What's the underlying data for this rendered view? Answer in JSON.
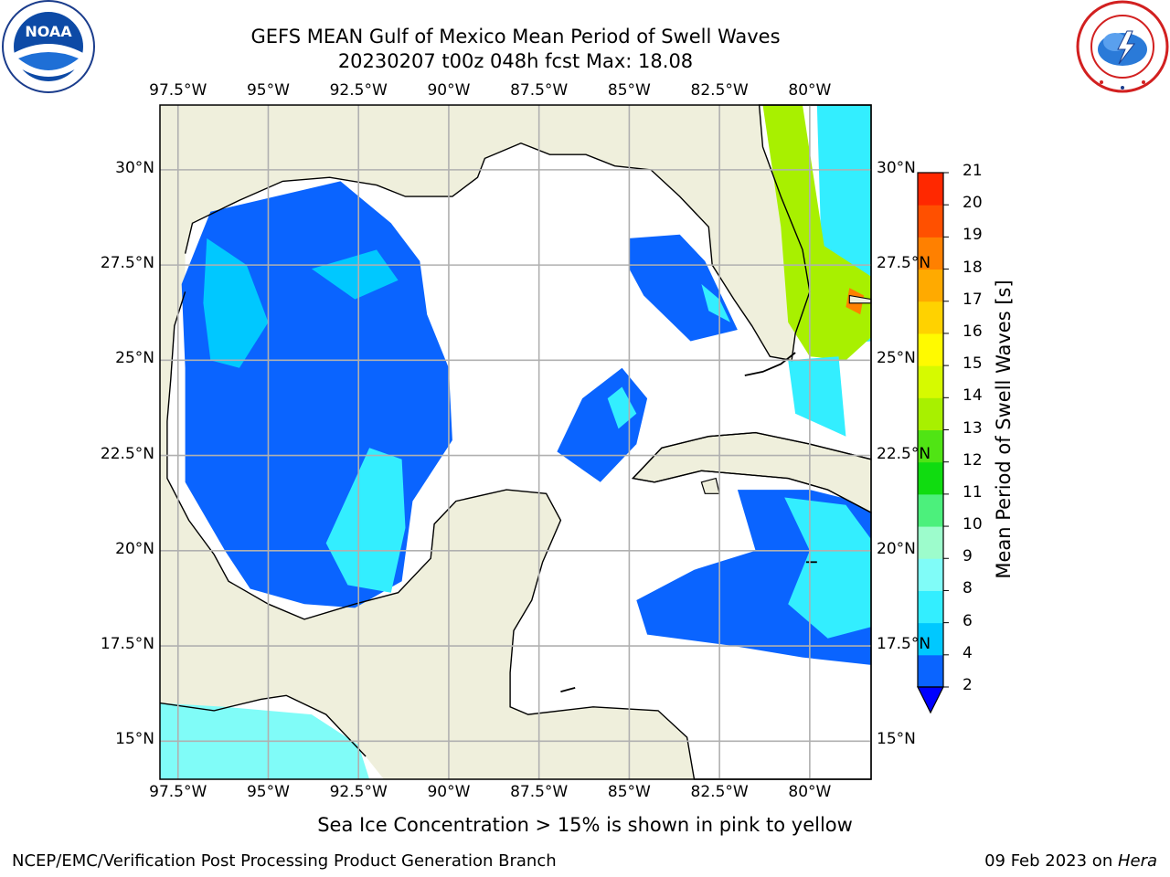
{
  "header": {
    "title_line1": "GEFS MEAN Gulf of Mexico Mean Period of Swell Waves",
    "title_line2": "20230207 t00z 048h fcst   Max: 18.08"
  },
  "logos": {
    "left_icon": "noaa-logo-icon",
    "left_text": "NOAA",
    "right_icon": "nws-logo-icon"
  },
  "subtitle": "Sea Ice Concentration > 15% is shown in pink to yellow",
  "footer": {
    "left": "NCEP/EMC/Verification Post Processing Product Generation Branch",
    "right_date": "09 Feb 2023 on ",
    "right_host": "Hera"
  },
  "colors": {
    "land": "#efefdc",
    "ocean_nodata": "#ffffff",
    "coast": "#000000",
    "grid": "#b0b0b0"
  },
  "chart_data": {
    "type": "heatmap",
    "title": "GEFS MEAN Gulf of Mexico Mean Period of Swell Waves",
    "max_value": 18.08,
    "x_ticks": [
      "97.5°W",
      "95°W",
      "92.5°W",
      "90°W",
      "87.5°W",
      "85°W",
      "82.5°W",
      "80°W"
    ],
    "x_tick_values": [
      -97.5,
      -95,
      -92.5,
      -90,
      -87.5,
      -85,
      -82.5,
      -80
    ],
    "y_ticks_left": [
      "30°N",
      "27.5°N",
      "25°N",
      "22.5°N",
      "20°N",
      "17.5°N",
      "15°N"
    ],
    "y_ticks_right": [
      "30°N",
      "27.5°N",
      "25°N",
      "22.5°N",
      "20°N",
      "17.5°N",
      "15°N"
    ],
    "y_tick_values": [
      30,
      27.5,
      25,
      22.5,
      20,
      17.5,
      15
    ],
    "xlim": [
      -98,
      -78.3
    ],
    "ylim": [
      14,
      31.7
    ],
    "grid": true,
    "colorbar": {
      "label": "Mean Period of Swell Waves [s]",
      "ticks": [
        "2",
        "4",
        "6",
        "8",
        "9",
        "10",
        "11",
        "12",
        "13",
        "14",
        "15",
        "16",
        "17",
        "18",
        "19",
        "20",
        "21"
      ],
      "colors": [
        "#0a64ff",
        "#00c8ff",
        "#33eeff",
        "#80fcf8",
        "#9dfccc",
        "#4cf07c",
        "#10dc10",
        "#50e414",
        "#a8f000",
        "#d6fa00",
        "#fffa00",
        "#ffd200",
        "#ffaa00",
        "#ff8000",
        "#ff5000",
        "#ff2800"
      ],
      "under_color": "#0000ff"
    },
    "regions": [
      {
        "name": "nw-gulf",
        "value": 3,
        "points": [
          [
            -96.6,
            28.9
          ],
          [
            -93.0,
            29.7
          ],
          [
            -91.6,
            28.6
          ],
          [
            -90.8,
            27.6
          ],
          [
            -90.6,
            26.2
          ],
          [
            -90.0,
            24.8
          ],
          [
            -89.9,
            22.9
          ],
          [
            -91.0,
            21.3
          ],
          [
            -91.3,
            19.2
          ],
          [
            -92.6,
            18.5
          ],
          [
            -94.0,
            18.6
          ],
          [
            -95.5,
            19.0
          ],
          [
            -96.2,
            20.0
          ],
          [
            -97.3,
            21.8
          ],
          [
            -97.3,
            24.8
          ],
          [
            -97.4,
            27.0
          ]
        ]
      },
      {
        "name": "nw-gulf-light",
        "value": 5,
        "points": [
          [
            -96.7,
            28.2
          ],
          [
            -95.6,
            27.5
          ],
          [
            -95.0,
            26.0
          ],
          [
            -95.8,
            24.8
          ],
          [
            -96.6,
            25.0
          ],
          [
            -96.8,
            26.5
          ]
        ]
      },
      {
        "name": "nw-gulf-light-2",
        "value": 5,
        "points": [
          [
            -93.8,
            27.4
          ],
          [
            -92.0,
            27.9
          ],
          [
            -91.4,
            27.1
          ],
          [
            -92.6,
            26.6
          ]
        ]
      },
      {
        "name": "campeche-light",
        "value": 6,
        "points": [
          [
            -93.4,
            20.2
          ],
          [
            -92.2,
            22.7
          ],
          [
            -91.3,
            22.4
          ],
          [
            -91.2,
            20.6
          ],
          [
            -91.6,
            18.9
          ],
          [
            -92.8,
            19.1
          ]
        ]
      },
      {
        "name": "east-gulf",
        "value": 3,
        "points": [
          [
            -85.0,
            28.2
          ],
          [
            -83.6,
            28.3
          ],
          [
            -82.9,
            27.6
          ],
          [
            -82.0,
            25.8
          ],
          [
            -83.3,
            25.5
          ],
          [
            -84.6,
            26.7
          ],
          [
            -85.0,
            27.4
          ]
        ]
      },
      {
        "name": "east-gulf-light",
        "value": 6,
        "points": [
          [
            -83.0,
            27.0
          ],
          [
            -82.5,
            26.6
          ],
          [
            -82.2,
            26.0
          ],
          [
            -82.8,
            26.3
          ]
        ]
      },
      {
        "name": "yucatan-channel",
        "value": 3,
        "points": [
          [
            -85.2,
            24.8
          ],
          [
            -84.5,
            24.0
          ],
          [
            -84.8,
            22.8
          ],
          [
            -85.8,
            21.8
          ],
          [
            -87.0,
            22.6
          ],
          [
            -86.3,
            24.0
          ]
        ]
      },
      {
        "name": "yucatan-light",
        "value": 6,
        "points": [
          [
            -85.2,
            24.3
          ],
          [
            -84.8,
            23.6
          ],
          [
            -85.3,
            23.2
          ],
          [
            -85.6,
            24.0
          ]
        ]
      },
      {
        "name": "caribbean",
        "value": 3,
        "points": [
          [
            -82.0,
            21.6
          ],
          [
            -80.0,
            21.6
          ],
          [
            -78.3,
            21.2
          ],
          [
            -78.3,
            17.0
          ],
          [
            -80.2,
            17.2
          ],
          [
            -82.1,
            17.5
          ],
          [
            -84.5,
            17.8
          ],
          [
            -84.8,
            18.7
          ],
          [
            -83.2,
            19.5
          ],
          [
            -81.5,
            20.0
          ]
        ]
      },
      {
        "name": "caribbean-light",
        "value": 7,
        "points": [
          [
            -80.7,
            21.4
          ],
          [
            -79.0,
            21.2
          ],
          [
            -78.3,
            20.3
          ],
          [
            -78.3,
            18.0
          ],
          [
            -79.5,
            17.7
          ],
          [
            -80.6,
            18.6
          ],
          [
            -80.0,
            20.0
          ]
        ]
      },
      {
        "name": "atlantic-light",
        "value": 7,
        "points": [
          [
            -79.8,
            31.7
          ],
          [
            -78.3,
            31.7
          ],
          [
            -78.3,
            25.5
          ],
          [
            -79.6,
            25.4
          ]
        ]
      },
      {
        "name": "atlantic-long",
        "value": 13,
        "points": [
          [
            -81.3,
            31.7
          ],
          [
            -80.2,
            31.7
          ],
          [
            -79.6,
            28.0
          ],
          [
            -78.3,
            27.2
          ],
          [
            -78.3,
            25.6
          ],
          [
            -79.0,
            25.0
          ],
          [
            -80.0,
            25.1
          ],
          [
            -80.6,
            26.0
          ],
          [
            -80.8,
            28.5
          ]
        ]
      },
      {
        "name": "atlantic-peak",
        "value": 18,
        "points": [
          [
            -78.9,
            26.9
          ],
          [
            -78.5,
            26.7
          ],
          [
            -78.6,
            26.2
          ],
          [
            -79.0,
            26.4
          ]
        ]
      },
      {
        "name": "florida-straits",
        "value": 6,
        "points": [
          [
            -80.6,
            25.0
          ],
          [
            -79.2,
            25.1
          ],
          [
            -79.0,
            23.0
          ],
          [
            -80.4,
            23.6
          ]
        ]
      },
      {
        "name": "pacific",
        "value": 8,
        "points": [
          [
            -98.0,
            16.0
          ],
          [
            -96.2,
            15.9
          ],
          [
            -93.8,
            15.7
          ],
          [
            -92.5,
            14.9
          ],
          [
            -92.2,
            14.0
          ],
          [
            -98.0,
            14.0
          ]
        ]
      }
    ]
  }
}
